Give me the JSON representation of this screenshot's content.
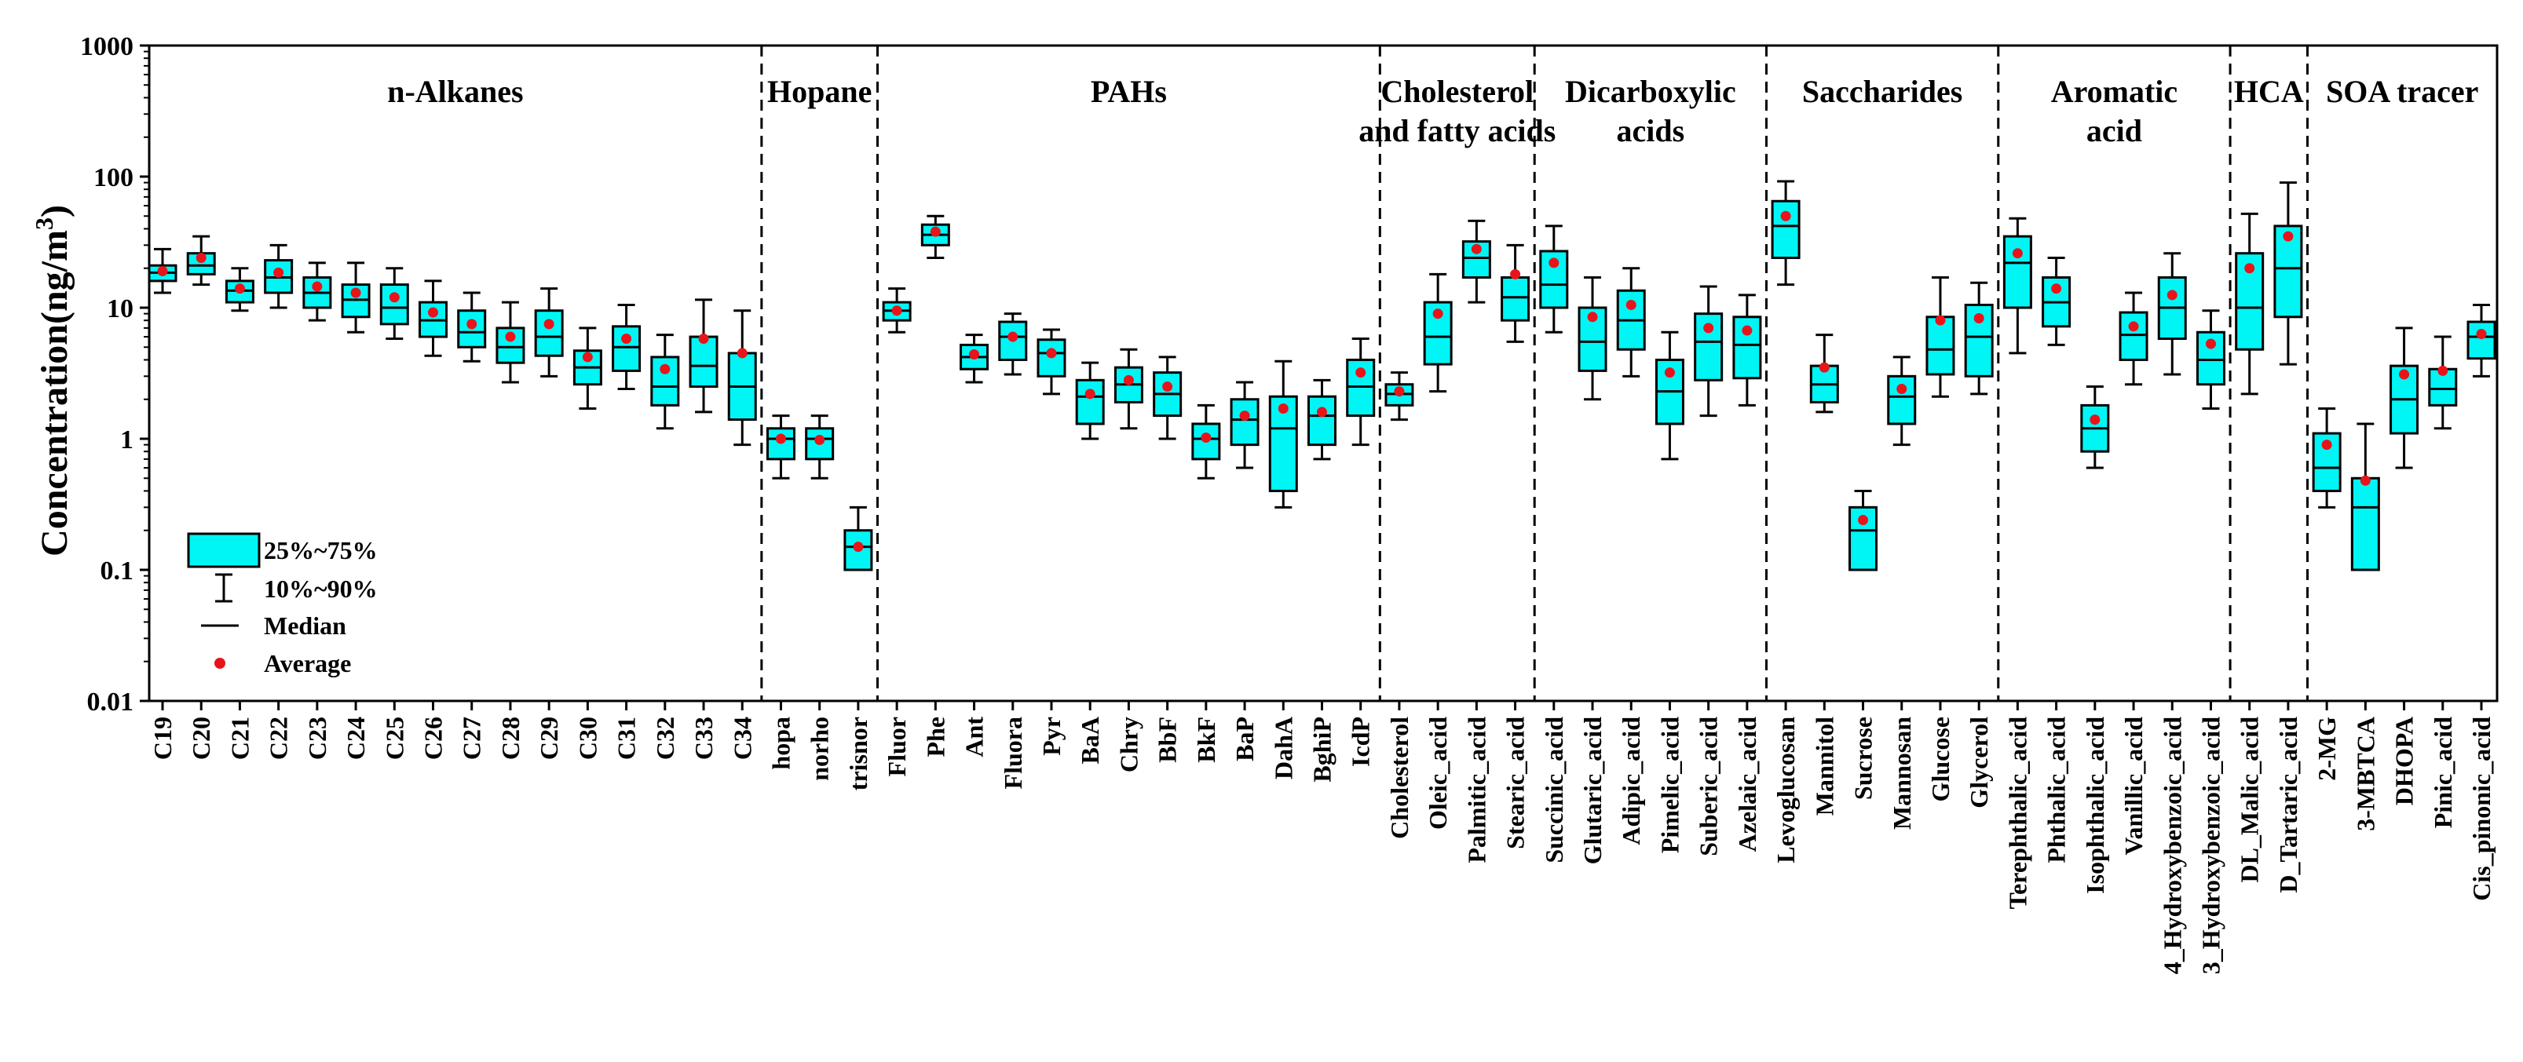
{
  "chart_data": {
    "type": "box",
    "title": "",
    "xlabel": "",
    "ylabel": "Concentration(ng/m",
    "ylabel_superscript": "3",
    "ylabel_suffix": ")",
    "yscale": "log",
    "ylim": [
      0.01,
      1000
    ],
    "yticks": [
      "0.01",
      "0.1",
      "1",
      "10",
      "100",
      "1000"
    ],
    "ytick_values": [
      0.01,
      0.1,
      1,
      10,
      100,
      1000
    ],
    "box_color": "#00f5f5",
    "mean_color": "#e8141a",
    "groups": [
      {
        "name": "n-Alkanes",
        "lines": [
          "n-Alkanes"
        ]
      },
      {
        "name": "Hopane",
        "lines": [
          "Hopane"
        ]
      },
      {
        "name": "PAHs",
        "lines": [
          "PAHs"
        ]
      },
      {
        "name": "Cholesterol and fatty acids",
        "lines": [
          "Cholesterol",
          "and fatty acids"
        ]
      },
      {
        "name": "Dicarboxylic acids",
        "lines": [
          "Dicarboxylic",
          "acids"
        ]
      },
      {
        "name": "Saccharides",
        "lines": [
          "Saccharides"
        ]
      },
      {
        "name": "Aromatic acid",
        "lines": [
          "Aromatic",
          "acid"
        ]
      },
      {
        "name": "HCA",
        "lines": [
          "HCA"
        ]
      },
      {
        "name": "SOA tracer",
        "lines": [
          "SOA tracer"
        ]
      }
    ],
    "legend": {
      "box": "25%~75%",
      "whisker": "10%~90%",
      "median": "Median",
      "mean": "Average"
    },
    "boxes": [
      {
        "label": "C19",
        "group": 0,
        "p10": 13,
        "q1": 16,
        "median": 18.5,
        "q3": 21,
        "p90": 28,
        "mean": 19
      },
      {
        "label": "C20",
        "group": 0,
        "p10": 15,
        "q1": 18,
        "median": 21,
        "q3": 26,
        "p90": 35,
        "mean": 24
      },
      {
        "label": "C21",
        "group": 0,
        "p10": 9.5,
        "q1": 11,
        "median": 13.5,
        "q3": 16,
        "p90": 20,
        "mean": 14
      },
      {
        "label": "C22",
        "group": 0,
        "p10": 10,
        "q1": 13,
        "median": 17,
        "q3": 23,
        "p90": 30,
        "mean": 18.5
      },
      {
        "label": "C23",
        "group": 0,
        "p10": 8,
        "q1": 10,
        "median": 13,
        "q3": 17,
        "p90": 22,
        "mean": 14.5
      },
      {
        "label": "C24",
        "group": 0,
        "p10": 6.5,
        "q1": 8.5,
        "median": 11.5,
        "q3": 15,
        "p90": 22,
        "mean": 13
      },
      {
        "label": "C25",
        "group": 0,
        "p10": 5.8,
        "q1": 7.5,
        "median": 10,
        "q3": 15,
        "p90": 20,
        "mean": 12
      },
      {
        "label": "C26",
        "group": 0,
        "p10": 4.3,
        "q1": 6,
        "median": 8,
        "q3": 11,
        "p90": 16,
        "mean": 9.2
      },
      {
        "label": "C27",
        "group": 0,
        "p10": 3.9,
        "q1": 5,
        "median": 6.5,
        "q3": 9.5,
        "p90": 13,
        "mean": 7.5
      },
      {
        "label": "C28",
        "group": 0,
        "p10": 2.7,
        "q1": 3.8,
        "median": 5,
        "q3": 7,
        "p90": 11,
        "mean": 6
      },
      {
        "label": "C29",
        "group": 0,
        "p10": 3,
        "q1": 4.3,
        "median": 6,
        "q3": 9.5,
        "p90": 14,
        "mean": 7.5
      },
      {
        "label": "C30",
        "group": 0,
        "p10": 1.7,
        "q1": 2.6,
        "median": 3.5,
        "q3": 4.7,
        "p90": 7,
        "mean": 4.2
      },
      {
        "label": "C31",
        "group": 0,
        "p10": 2.4,
        "q1": 3.3,
        "median": 5,
        "q3": 7.2,
        "p90": 10.5,
        "mean": 5.8
      },
      {
        "label": "C32",
        "group": 0,
        "p10": 1.2,
        "q1": 1.8,
        "median": 2.5,
        "q3": 4.2,
        "p90": 6.2,
        "mean": 3.4
      },
      {
        "label": "C33",
        "group": 0,
        "p10": 1.6,
        "q1": 2.5,
        "median": 3.6,
        "q3": 6,
        "p90": 11.5,
        "mean": 5.8
      },
      {
        "label": "C34",
        "group": 0,
        "p10": 0.9,
        "q1": 1.4,
        "median": 2.5,
        "q3": 4.5,
        "p90": 9.5,
        "mean": 4.5
      },
      {
        "label": "hopa",
        "group": 1,
        "p10": 0.5,
        "q1": 0.7,
        "median": 1,
        "q3": 1.2,
        "p90": 1.5,
        "mean": 1
      },
      {
        "label": "norho",
        "group": 1,
        "p10": 0.5,
        "q1": 0.7,
        "median": 1,
        "q3": 1.2,
        "p90": 1.5,
        "mean": 0.98
      },
      {
        "label": "trisnor",
        "group": 1,
        "p10": 0.1,
        "q1": 0.1,
        "median": 0.15,
        "q3": 0.2,
        "p90": 0.3,
        "mean": 0.15
      },
      {
        "label": "Fluor",
        "group": 2,
        "p10": 6.5,
        "q1": 8,
        "median": 9.5,
        "q3": 11,
        "p90": 14,
        "mean": 9.5
      },
      {
        "label": "Phe",
        "group": 2,
        "p10": 24,
        "q1": 30,
        "median": 36,
        "q3": 43,
        "p90": 50,
        "mean": 38
      },
      {
        "label": "Ant",
        "group": 2,
        "p10": 2.7,
        "q1": 3.4,
        "median": 4.2,
        "q3": 5.2,
        "p90": 6.2,
        "mean": 4.4
      },
      {
        "label": "Fluora",
        "group": 2,
        "p10": 3.1,
        "q1": 4,
        "median": 6,
        "q3": 7.8,
        "p90": 9,
        "mean": 6
      },
      {
        "label": "Pyr",
        "group": 2,
        "p10": 2.2,
        "q1": 3,
        "median": 4.5,
        "q3": 5.7,
        "p90": 6.8,
        "mean": 4.5
      },
      {
        "label": "BaA",
        "group": 2,
        "p10": 1,
        "q1": 1.3,
        "median": 2.1,
        "q3": 2.8,
        "p90": 3.8,
        "mean": 2.2
      },
      {
        "label": "Chry",
        "group": 2,
        "p10": 1.2,
        "q1": 1.9,
        "median": 2.6,
        "q3": 3.5,
        "p90": 4.8,
        "mean": 2.8
      },
      {
        "label": "BbF",
        "group": 2,
        "p10": 1,
        "q1": 1.5,
        "median": 2.2,
        "q3": 3.2,
        "p90": 4.2,
        "mean": 2.5
      },
      {
        "label": "BkF",
        "group": 2,
        "p10": 0.5,
        "q1": 0.7,
        "median": 1,
        "q3": 1.3,
        "p90": 1.8,
        "mean": 1.02
      },
      {
        "label": "BaP",
        "group": 2,
        "p10": 0.6,
        "q1": 0.9,
        "median": 1.4,
        "q3": 2,
        "p90": 2.7,
        "mean": 1.5
      },
      {
        "label": "DahA",
        "group": 2,
        "p10": 0.3,
        "q1": 0.4,
        "median": 1.2,
        "q3": 2.1,
        "p90": 3.9,
        "mean": 1.7
      },
      {
        "label": "BghiP",
        "group": 2,
        "p10": 0.7,
        "q1": 0.9,
        "median": 1.5,
        "q3": 2.1,
        "p90": 2.8,
        "mean": 1.6
      },
      {
        "label": "IcdP",
        "group": 2,
        "p10": 0.9,
        "q1": 1.5,
        "median": 2.5,
        "q3": 4,
        "p90": 5.8,
        "mean": 3.2
      },
      {
        "label": "Cholesterol",
        "group": 3,
        "p10": 1.4,
        "q1": 1.8,
        "median": 2.2,
        "q3": 2.6,
        "p90": 3.2,
        "mean": 2.3
      },
      {
        "label": "Oleic_acid",
        "group": 3,
        "p10": 2.3,
        "q1": 3.7,
        "median": 6,
        "q3": 11,
        "p90": 18,
        "mean": 9
      },
      {
        "label": "Palmitic_acid",
        "group": 3,
        "p10": 11,
        "q1": 17,
        "median": 24,
        "q3": 32,
        "p90": 46,
        "mean": 28
      },
      {
        "label": "Stearic_acid",
        "group": 3,
        "p10": 5.5,
        "q1": 8,
        "median": 12,
        "q3": 17,
        "p90": 30,
        "mean": 18
      },
      {
        "label": "Succinic_acid",
        "group": 4,
        "p10": 6.5,
        "q1": 10,
        "median": 15,
        "q3": 27,
        "p90": 42,
        "mean": 22
      },
      {
        "label": "Glutaric_acid",
        "group": 4,
        "p10": 2,
        "q1": 3.3,
        "median": 5.5,
        "q3": 10,
        "p90": 17,
        "mean": 8.5
      },
      {
        "label": "Adipic_acid",
        "group": 4,
        "p10": 3,
        "q1": 4.8,
        "median": 8,
        "q3": 13.5,
        "p90": 20,
        "mean": 10.5
      },
      {
        "label": "Pimelic_acid",
        "group": 4,
        "p10": 0.7,
        "q1": 1.3,
        "median": 2.3,
        "q3": 4,
        "p90": 6.5,
        "mean": 3.2
      },
      {
        "label": "Suberic_acid",
        "group": 4,
        "p10": 1.5,
        "q1": 2.8,
        "median": 5.5,
        "q3": 9,
        "p90": 14.5,
        "mean": 7
      },
      {
        "label": "Azelaic_acid",
        "group": 4,
        "p10": 1.8,
        "q1": 2.9,
        "median": 5.2,
        "q3": 8.5,
        "p90": 12.5,
        "mean": 6.7
      },
      {
        "label": "Levoglucosan",
        "group": 5,
        "p10": 15,
        "q1": 24,
        "median": 42,
        "q3": 65,
        "p90": 92,
        "mean": 50
      },
      {
        "label": "Mannitol",
        "group": 5,
        "p10": 1.6,
        "q1": 1.9,
        "median": 2.6,
        "q3": 3.6,
        "p90": 6.2,
        "mean": 3.5
      },
      {
        "label": "Sucrose",
        "group": 5,
        "p10": 0.1,
        "q1": 0.1,
        "median": 0.2,
        "q3": 0.3,
        "p90": 0.4,
        "mean": 0.24
      },
      {
        "label": "Mannosan",
        "group": 5,
        "p10": 0.9,
        "q1": 1.3,
        "median": 2.1,
        "q3": 3,
        "p90": 4.2,
        "mean": 2.4
      },
      {
        "label": "Glucose",
        "group": 5,
        "p10": 2.1,
        "q1": 3.1,
        "median": 4.8,
        "q3": 8.5,
        "p90": 17,
        "mean": 8
      },
      {
        "label": "Glycerol",
        "group": 5,
        "p10": 2.2,
        "q1": 3,
        "median": 6,
        "q3": 10.5,
        "p90": 15.5,
        "mean": 8.3
      },
      {
        "label": "Terephthalic_acid",
        "group": 6,
        "p10": 4.5,
        "q1": 10,
        "median": 22,
        "q3": 35,
        "p90": 48,
        "mean": 26
      },
      {
        "label": "Phthalic_acid",
        "group": 6,
        "p10": 5.2,
        "q1": 7.2,
        "median": 11,
        "q3": 17,
        "p90": 24,
        "mean": 14
      },
      {
        "label": "Isophthalic_acid",
        "group": 6,
        "p10": 0.6,
        "q1": 0.8,
        "median": 1.2,
        "q3": 1.8,
        "p90": 2.5,
        "mean": 1.4
      },
      {
        "label": "Vanillic_acid",
        "group": 6,
        "p10": 2.6,
        "q1": 4,
        "median": 6.2,
        "q3": 9.2,
        "p90": 13,
        "mean": 7.2
      },
      {
        "label": "4_Hydroxybenzoic_acid",
        "group": 6,
        "p10": 3.1,
        "q1": 5.8,
        "median": 10,
        "q3": 17,
        "p90": 26,
        "mean": 12.5
      },
      {
        "label": "3_Hydroxybenzoic_acid",
        "group": 6,
        "p10": 1.7,
        "q1": 2.6,
        "median": 4,
        "q3": 6.5,
        "p90": 9.5,
        "mean": 5.3
      },
      {
        "label": "DL_Malic_acid",
        "group": 7,
        "p10": 2.2,
        "q1": 4.8,
        "median": 10,
        "q3": 26,
        "p90": 52,
        "mean": 20
      },
      {
        "label": "D_Tartaric_acid",
        "group": 7,
        "p10": 3.7,
        "q1": 8.5,
        "median": 20,
        "q3": 42,
        "p90": 90,
        "mean": 35
      },
      {
        "label": "2-MG",
        "group": 8,
        "p10": 0.3,
        "q1": 0.4,
        "median": 0.6,
        "q3": 1.1,
        "p90": 1.7,
        "mean": 0.9
      },
      {
        "label": "3-MBTCA",
        "group": 8,
        "p10": 0.1,
        "q1": 0.1,
        "median": 0.3,
        "q3": 0.5,
        "p90": 1.3,
        "mean": 0.48
      },
      {
        "label": "DHOPA",
        "group": 8,
        "p10": 0.6,
        "q1": 1.1,
        "median": 2,
        "q3": 3.6,
        "p90": 7,
        "mean": 3.1
      },
      {
        "label": "Pinic_acid",
        "group": 8,
        "p10": 1.2,
        "q1": 1.8,
        "median": 2.4,
        "q3": 3.4,
        "p90": 6,
        "mean": 3.3
      },
      {
        "label": "Cis_pinonic_acid",
        "group": 8,
        "p10": 3,
        "q1": 4.1,
        "median": 6,
        "q3": 7.8,
        "p90": 10.5,
        "mean": 6.3
      }
    ]
  }
}
